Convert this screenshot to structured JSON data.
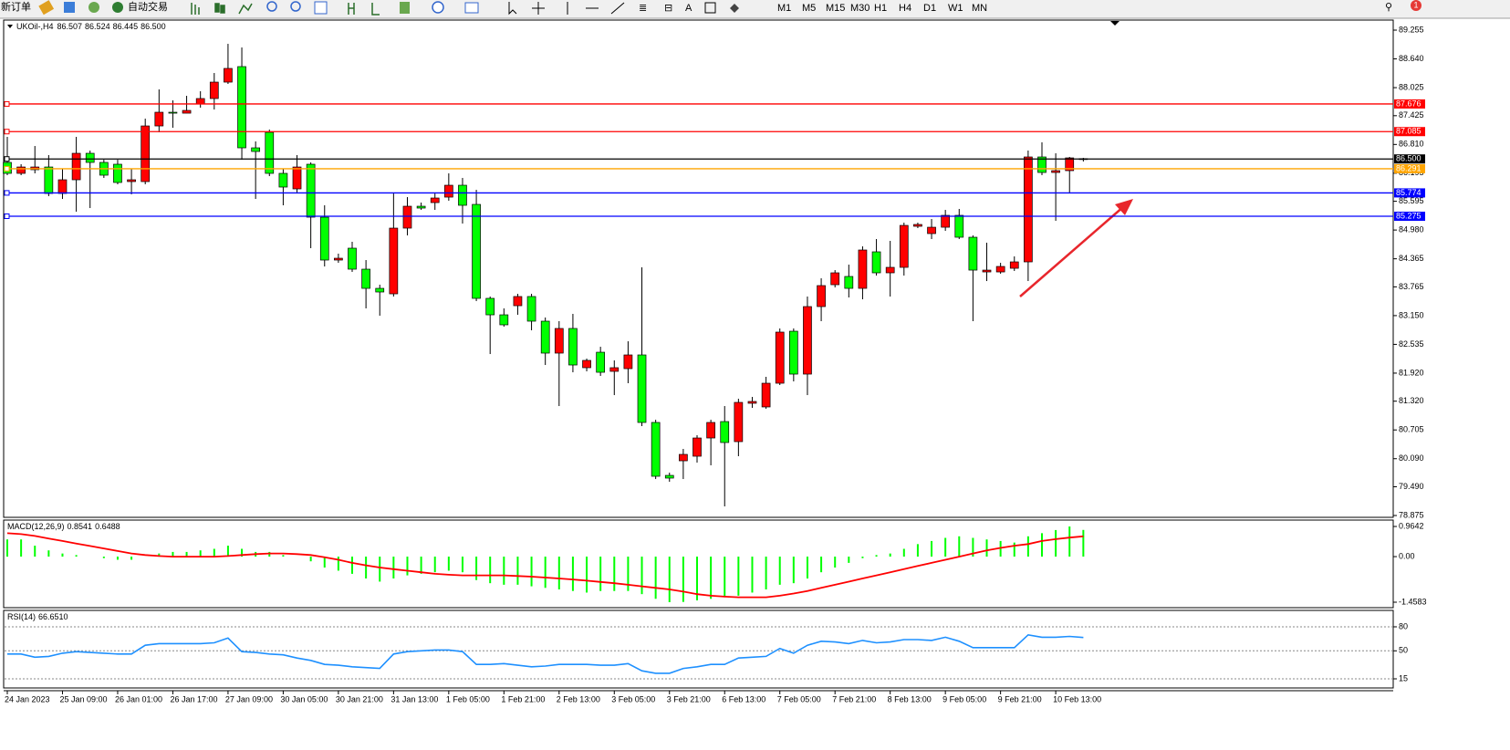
{
  "toolbar": {
    "new_order": "新订单",
    "auto_trading": "自动交易",
    "timeframes": [
      "M1",
      "M5",
      "M15",
      "M30",
      "H1",
      "H4",
      "D1",
      "W1",
      "MN"
    ],
    "notifications": "1"
  },
  "chart_data": [
    {
      "type": "candlestick",
      "title": "UKOil-,H4",
      "title_values": [
        "86.507",
        "86.524",
        "86.445",
        "86.500"
      ],
      "categories": [
        "24 Jan 2023",
        null,
        null,
        null,
        "25 Jan 09:00",
        null,
        null,
        null,
        "26 Jan 01:00",
        null,
        null,
        null,
        "26 Jan 17:00",
        null,
        null,
        null,
        "27 Jan 09:00",
        null,
        null,
        null,
        "30 Jan 05:00",
        null,
        null,
        null,
        "30 Jan 21:00",
        null,
        null,
        null,
        "31 Jan 13:00",
        null,
        null,
        null,
        "1 Feb 05:00",
        null,
        null,
        null,
        "1 Feb 21:00",
        null,
        null,
        null,
        "2 Feb 13:00",
        null,
        null,
        null,
        "3 Feb 05:00",
        null,
        null,
        null,
        "3 Feb 21:00",
        null,
        null,
        null,
        "6 Feb 13:00",
        null,
        null,
        null,
        "7 Feb 05:00",
        null,
        null,
        null,
        "7 Feb 21:00",
        null,
        null,
        null,
        "8 Feb 13:00",
        null,
        null,
        null,
        "9 Feb 05:00",
        null,
        null,
        null,
        "9 Feb 21:00",
        null,
        null,
        null,
        "10 Feb 13:00",
        null,
        null
      ],
      "open": [
        86.426,
        86.192,
        86.27,
        86.328,
        85.762,
        86.055,
        86.621,
        86.426,
        86.387,
        86.016,
        86.016,
        87.206,
        87.499,
        87.479,
        87.675,
        87.792,
        88.143,
        88.475,
        86.738,
        87.07,
        86.192,
        85.86,
        86.387,
        85.255,
        84.338,
        84.592,
        84.143,
        83.733,
        83.616,
        85.021,
        85.489,
        85.567,
        85.684,
        85.938,
        85.528,
        83.519,
        83.167,
        83.362,
        83.558,
        83.031,
        82.348,
        82.875,
        82.036,
        82.367,
        81.958,
        82.016,
        82.309,
        80.865,
        79.733,
        80.045,
        80.143,
        80.533,
        80.884,
        80.455,
        81.275,
        81.197,
        81.704,
        82.816,
        81.899,
        83.343,
        83.811,
        83.987,
        83.733,
        84.514,
        84.065,
        84.182,
        85.06,
        84.904,
        85.04,
        85.294,
        84.826,
        84.084,
        84.084,
        84.162,
        84.299,
        86.543,
        86.211,
        86.25,
        86.507
      ],
      "high": [
        86.972,
        86.387,
        86.777,
        86.582,
        86.289,
        86.972,
        86.679,
        86.484,
        86.484,
        86.289,
        87.362,
        87.987,
        87.753,
        87.85,
        87.948,
        88.338,
        88.962,
        88.884,
        86.875,
        87.128,
        86.289,
        86.582,
        86.426,
        85.509,
        84.475,
        84.728,
        84.338,
        83.811,
        85.762,
        85.684,
        85.567,
        85.762,
        86.192,
        86.094,
        85.84,
        83.558,
        83.304,
        83.616,
        83.616,
        83.109,
        83.031,
        83.187,
        82.231,
        82.484,
        82.192,
        82.601,
        84.182,
        80.923,
        79.792,
        80.299,
        80.592,
        80.923,
        81.216,
        81.372,
        81.411,
        81.841,
        82.875,
        82.875,
        83.558,
        83.948,
        84.123,
        84.24,
        84.631,
        84.787,
        84.748,
        85.138,
        85.138,
        85.216,
        85.411,
        85.431,
        84.865,
        84.709,
        84.279,
        84.416,
        86.679,
        86.855,
        86.621,
        86.543,
        86.524
      ],
      "low": [
        86.153,
        86.153,
        86.192,
        85.704,
        85.645,
        85.372,
        85.45,
        86.094,
        85.958,
        85.743,
        85.958,
        87.07,
        87.167,
        87.479,
        87.597,
        87.558,
        88.104,
        86.484,
        85.645,
        86.133,
        85.509,
        85.762,
        84.592,
        84.201,
        84.279,
        84.084,
        83.304,
        83.148,
        83.558,
        84.865,
        85.411,
        85.411,
        85.606,
        85.119,
        83.46,
        82.328,
        82.914,
        83.167,
        82.836,
        82.094,
        81.216,
        81.938,
        81.958,
        81.86,
        81.45,
        81.704,
        80.787,
        79.655,
        79.597,
        79.655,
        80.006,
        79.948,
        79.07,
        80.143,
        81.177,
        81.158,
        81.665,
        81.743,
        81.45,
        83.031,
        83.753,
        83.538,
        83.499,
        84.006,
        83.558,
        84.006,
        85.021,
        84.787,
        84.962,
        84.787,
        83.031,
        83.889,
        84.045,
        84.104,
        83.889,
        86.153,
        85.177,
        85.762,
        86.445
      ],
      "close": [
        86.192,
        86.328,
        86.328,
        85.762,
        86.055,
        86.621,
        86.426,
        86.153,
        85.997,
        86.055,
        87.206,
        87.499,
        87.479,
        87.538,
        87.792,
        88.143,
        88.436,
        86.738,
        86.66,
        86.192,
        85.899,
        86.328,
        85.255,
        84.338,
        84.377,
        84.143,
        83.733,
        83.655,
        85.021,
        85.489,
        85.45,
        85.665,
        85.938,
        85.509,
        83.519,
        83.167,
        82.953,
        83.558,
        83.031,
        82.348,
        82.875,
        82.094,
        82.192,
        81.938,
        82.036,
        82.309,
        80.865,
        79.714,
        79.675,
        80.182,
        80.533,
        80.865,
        80.436,
        81.294,
        81.314,
        81.704,
        82.797,
        81.899,
        83.343,
        83.792,
        84.065,
        83.733,
        84.553,
        84.065,
        84.182,
        85.079,
        85.099,
        85.04,
        85.294,
        84.826,
        84.123,
        84.123,
        84.201,
        84.299,
        86.543,
        86.211,
        86.25,
        86.523,
        86.5
      ],
      "up_color": "#ff0000",
      "down_color": "#00ff00",
      "ylim": [
        78.836,
        89.47
      ],
      "yticks": [
        89.255,
        {
          "value": 88.64,
          "label": "88.640"
        },
        88.025,
        87.425,
        {
          "value": 86.81,
          "label": "86.810"
        },
        86.195,
        85.595,
        {
          "value": 84.98,
          "label": "84.980"
        },
        84.365,
        83.765,
        {
          "value": 83.15,
          "label": "83.150"
        },
        82.535,
        {
          "value": 81.92,
          "label": "81.920"
        },
        {
          "value": 81.32,
          "label": "81.320"
        },
        80.705,
        {
          "value": 80.09,
          "label": "80.090"
        },
        {
          "value": 79.49,
          "label": "79.490"
        },
        78.875
      ],
      "hlines": [
        {
          "value": 87.676,
          "label": "87.676",
          "color": "#ff0000"
        },
        {
          "value": 87.085,
          "label": "87.085",
          "color": "#ff0000"
        },
        {
          "value": 86.5,
          "label": "86.500",
          "color": "#000000"
        },
        {
          "value": 86.291,
          "label": "86.291",
          "color": "#ffa500"
        },
        {
          "value": 85.774,
          "label": "85.774",
          "color": "#0000ff"
        },
        {
          "value": 85.275,
          "label": "85.275",
          "color": "#0000ff"
        }
      ]
    },
    {
      "type": "macd",
      "title": "MACD(12,26,9)",
      "values": [
        0.55,
        0.55,
        0.35,
        0.2,
        0.1,
        0.05,
        0.0,
        -0.05,
        -0.1,
        -0.1,
        0.0,
        0.1,
        0.15,
        0.15,
        0.2,
        0.25,
        0.35,
        0.25,
        0.15,
        0.15,
        0.05,
        0.0,
        -0.15,
        -0.35,
        -0.45,
        -0.55,
        -0.7,
        -0.8,
        -0.7,
        -0.6,
        -0.55,
        -0.5,
        -0.45,
        -0.5,
        -0.75,
        -0.85,
        -0.9,
        -0.9,
        -0.95,
        -1.0,
        -1.05,
        -1.1,
        -1.15,
        -1.1,
        -1.1,
        -1.1,
        -1.2,
        -1.35,
        -1.4583,
        -1.45,
        -1.4,
        -1.35,
        -1.3,
        -1.25,
        -1.15,
        -1.05,
        -0.9,
        -0.85,
        -0.7,
        -0.5,
        -0.35,
        -0.2,
        -0.05,
        0.05,
        0.1,
        0.25,
        0.4,
        0.5,
        0.6,
        0.65,
        0.6,
        0.55,
        0.5,
        0.45,
        0.65,
        0.75,
        0.85,
        0.9642,
        0.8541
      ],
      "signal": [
        0.75,
        0.72,
        0.66,
        0.58,
        0.5,
        0.42,
        0.34,
        0.26,
        0.18,
        0.1,
        0.05,
        0.02,
        0.0,
        0.0,
        0.0,
        0.0,
        0.02,
        0.05,
        0.08,
        0.1,
        0.1,
        0.08,
        0.05,
        -0.02,
        -0.1,
        -0.2,
        -0.28,
        -0.35,
        -0.4,
        -0.45,
        -0.5,
        -0.55,
        -0.58,
        -0.6,
        -0.6,
        -0.6,
        -0.6,
        -0.62,
        -0.64,
        -0.67,
        -0.7,
        -0.73,
        -0.77,
        -0.81,
        -0.85,
        -0.9,
        -0.95,
        -1.0,
        -1.05,
        -1.12,
        -1.2,
        -1.25,
        -1.28,
        -1.3,
        -1.3,
        -1.3,
        -1.25,
        -1.18,
        -1.1,
        -1.0,
        -0.9,
        -0.8,
        -0.7,
        -0.6,
        -0.5,
        -0.4,
        -0.3,
        -0.2,
        -0.1,
        0.0,
        0.1,
        0.2,
        0.28,
        0.35,
        0.4,
        0.5,
        0.56,
        0.61,
        0.6488
      ],
      "color": "#00ff00",
      "signal_color": "#ff0000",
      "ylim": [
        -1.633,
        1.169
      ],
      "yticks": [
        -1.4583,
        {
          "value": 0,
          "label": "0.00"
        },
        0.9642
      ]
    },
    {
      "type": "line",
      "title": "RSI(14)",
      "last_value_label": "66.6510",
      "values": [
        46,
        46,
        42,
        43,
        47,
        49,
        48,
        47,
        46,
        46,
        57,
        59,
        59,
        59,
        59,
        60,
        66,
        49,
        48,
        46,
        45,
        41,
        38,
        33,
        32,
        30,
        29,
        28,
        46,
        49,
        50,
        51,
        51,
        49,
        33,
        33,
        34,
        32,
        30,
        31,
        33,
        33,
        33,
        32,
        32,
        34,
        25,
        22,
        22,
        28,
        30,
        33,
        33,
        41,
        42,
        43,
        53,
        47,
        57,
        62,
        61,
        59,
        63,
        60,
        61,
        64,
        64,
        63,
        67,
        62,
        54,
        54,
        54,
        54,
        70,
        67,
        67,
        68,
        66.651
      ],
      "color": "#1e90ff",
      "ylim": [
        3.6,
        100.5
      ],
      "yticks": [
        15,
        50,
        80
      ],
      "grid": true,
      "grid_style": "dashed"
    }
  ]
}
